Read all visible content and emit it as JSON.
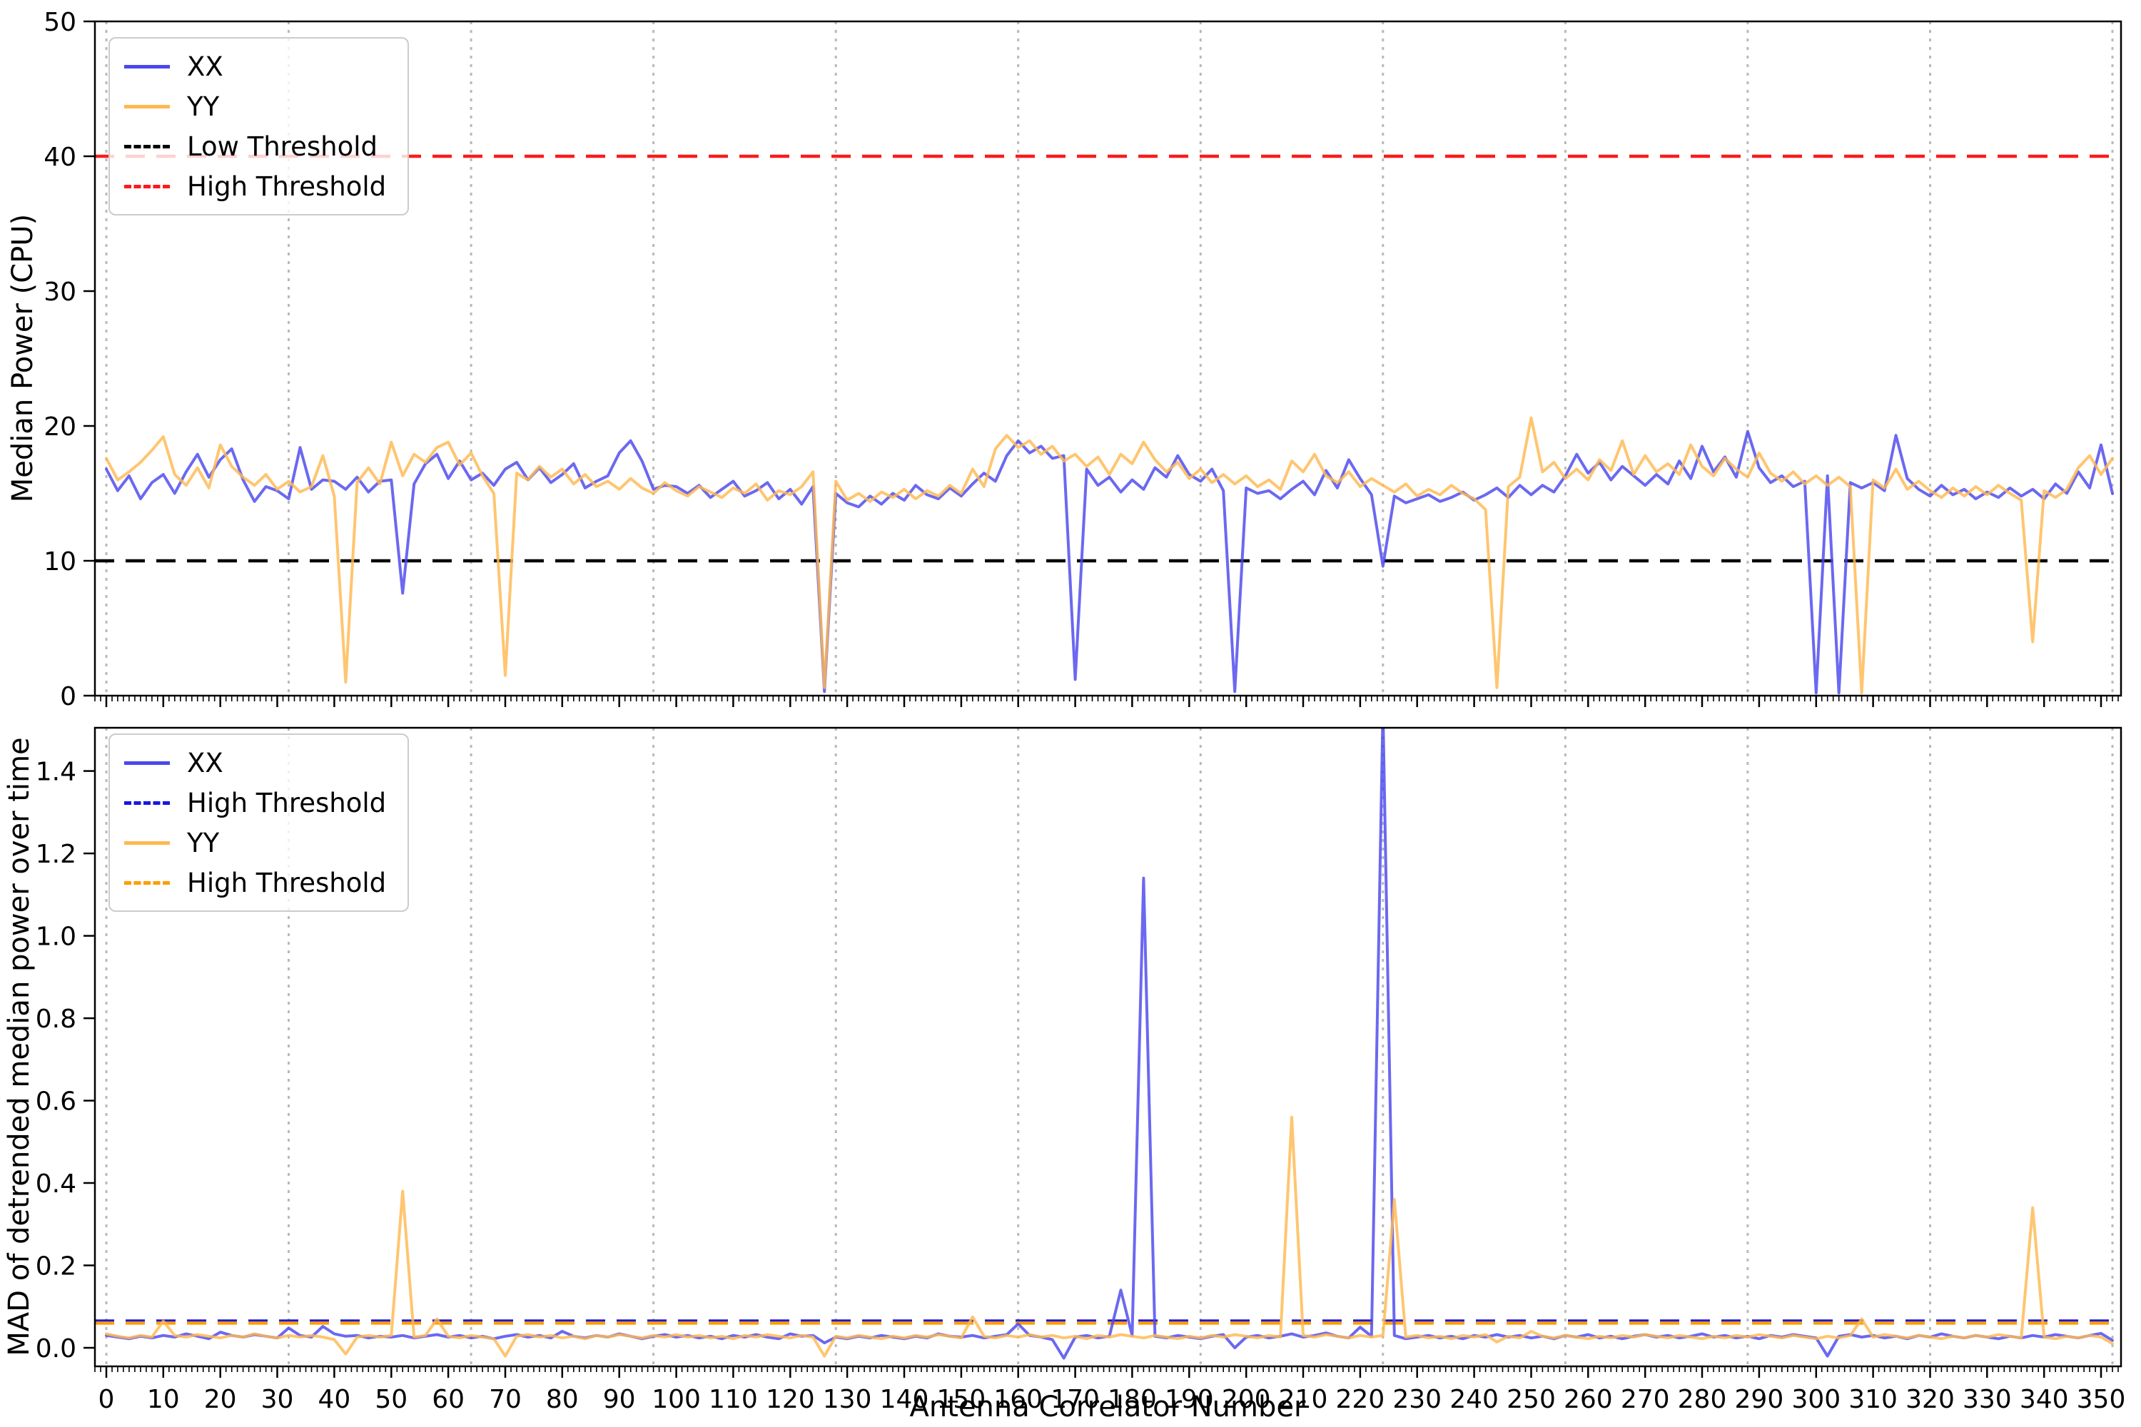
{
  "figure": {
    "background": "#ffffff"
  },
  "colors": {
    "xx_solid": "#4a47ee",
    "yy_solid": "#ffb850",
    "xx_threshold_dash": "#1717e0",
    "yy_threshold_dash": "#ff9e00",
    "low_threshold_black": "#000000",
    "high_threshold_red": "#fb1b1b",
    "gridline": "#b9b9b9"
  },
  "chart_data": [
    {
      "type": "line",
      "panel": "top",
      "title": "",
      "xlabel": "",
      "ylabel": "Median Power (CPU)",
      "xlim": [
        -2.0,
        353.5
      ],
      "ylim": [
        0,
        50
      ],
      "xticks": [
        0,
        10,
        20,
        30,
        40,
        50,
        60,
        70,
        80,
        90,
        100,
        110,
        120,
        130,
        140,
        150,
        160,
        170,
        180,
        190,
        200,
        210,
        220,
        230,
        240,
        250,
        260,
        270,
        280,
        290,
        300,
        310,
        320,
        330,
        340,
        350
      ],
      "x_tick_labels_visible": false,
      "x_minor_step": 1,
      "yticks": [
        0,
        10,
        20,
        30,
        40,
        50
      ],
      "ytick_labels": [
        "0",
        "10",
        "20",
        "30",
        "40",
        "50"
      ],
      "grid_x": [
        0,
        32,
        64,
        96,
        128,
        160,
        192,
        224,
        256,
        288,
        320,
        352
      ],
      "grid_style": "vertical dotted light-gray every 32 antennas",
      "legend_position": "upper left",
      "legend": {
        "items": [
          {
            "label": "XX",
            "sample_style": "border-top:5px solid #4a47ee"
          },
          {
            "label": "YY",
            "sample_style": "border-top:5px solid #ffb850"
          },
          {
            "label": "Low Threshold",
            "sample_style": "border-top:5px dashed #000000"
          },
          {
            "label": "High Threshold",
            "sample_style": "border-top:5px dashed #fb1b1b"
          }
        ]
      },
      "thresholds": [
        {
          "label": "Low Threshold",
          "value": 10,
          "color": "#000000"
        },
        {
          "label": "High Threshold",
          "value": 40,
          "color": "#fb1b1b"
        }
      ],
      "series": [
        {
          "name": "XX",
          "color": "#4a47ee",
          "x_start": 0,
          "x_step": 2,
          "values": [
            16.8,
            15.2,
            16.3,
            14.6,
            15.8,
            16.4,
            15.0,
            16.6,
            17.9,
            16.2,
            17.5,
            18.3,
            16.0,
            14.4,
            15.5,
            15.2,
            14.6,
            18.4,
            15.3,
            16.0,
            15.9,
            15.3,
            16.2,
            15.1,
            15.9,
            16.0,
            7.6,
            15.7,
            17.2,
            17.9,
            16.1,
            17.4,
            16.0,
            16.5,
            15.6,
            16.8,
            17.3,
            16.0,
            16.9,
            15.8,
            16.4,
            17.2,
            15.4,
            15.9,
            16.3,
            18.0,
            18.9,
            17.4,
            15.3,
            15.6,
            15.5,
            15.0,
            15.6,
            14.7,
            15.3,
            15.9,
            14.8,
            15.2,
            15.8,
            14.6,
            15.3,
            14.2,
            15.5,
            0.3,
            15.0,
            14.3,
            14.0,
            14.8,
            14.2,
            15.0,
            14.5,
            15.6,
            14.9,
            14.6,
            15.4,
            14.8,
            15.7,
            16.5,
            15.9,
            17.8,
            18.9,
            18.0,
            18.5,
            17.6,
            17.8,
            1.2,
            16.8,
            15.6,
            16.2,
            15.1,
            16.0,
            15.3,
            16.9,
            16.2,
            17.8,
            16.4,
            15.9,
            16.8,
            15.2,
            0.3,
            15.4,
            15.0,
            15.2,
            14.6,
            15.3,
            15.9,
            14.9,
            16.7,
            15.4,
            17.5,
            16.1,
            14.9,
            9.6,
            14.8,
            14.3,
            14.6,
            14.9,
            14.4,
            14.7,
            15.1,
            14.5,
            14.9,
            15.4,
            14.7,
            15.6,
            14.9,
            15.6,
            15.1,
            16.3,
            17.9,
            16.5,
            17.3,
            16.0,
            17.0,
            16.3,
            15.6,
            16.4,
            15.7,
            17.4,
            16.1,
            18.5,
            16.6,
            17.7,
            16.2,
            19.6,
            16.9,
            15.8,
            16.3,
            15.5,
            15.9,
            0.2,
            16.3,
            0.2,
            15.8,
            15.4,
            15.8,
            15.2,
            19.3,
            16.1,
            15.3,
            14.8,
            15.6,
            14.9,
            15.3,
            14.6,
            15.1,
            14.7,
            15.4,
            14.8,
            15.3,
            14.6,
            15.7,
            15.0,
            16.6,
            15.4,
            18.6,
            15.0
          ]
        },
        {
          "name": "YY",
          "color": "#ffb850",
          "x_start": 0,
          "x_step": 2,
          "values": [
            17.6,
            16.0,
            16.6,
            17.3,
            18.2,
            19.2,
            16.4,
            15.6,
            16.9,
            15.4,
            18.6,
            17.0,
            16.2,
            15.6,
            16.4,
            15.3,
            15.9,
            15.1,
            15.5,
            17.8,
            14.8,
            1.0,
            15.8,
            16.9,
            15.7,
            18.8,
            16.3,
            17.9,
            17.3,
            18.4,
            18.8,
            17.1,
            18.0,
            16.3,
            15.0,
            1.5,
            16.5,
            16.0,
            17.0,
            16.2,
            16.8,
            15.7,
            16.4,
            15.5,
            15.9,
            15.3,
            16.1,
            15.4,
            15.0,
            15.8,
            15.2,
            14.8,
            15.5,
            15.1,
            14.7,
            15.4,
            15.0,
            15.7,
            14.5,
            15.2,
            14.9,
            15.5,
            16.6,
            0.6,
            15.9,
            14.5,
            15.0,
            14.4,
            15.1,
            14.7,
            15.3,
            14.6,
            15.2,
            14.8,
            15.6,
            15.0,
            16.8,
            15.5,
            18.3,
            19.3,
            18.4,
            18.9,
            17.9,
            18.5,
            17.4,
            17.9,
            17.0,
            17.7,
            16.4,
            17.9,
            17.2,
            18.8,
            17.5,
            16.6,
            17.3,
            16.1,
            16.8,
            15.8,
            16.4,
            15.7,
            16.3,
            15.5,
            16.0,
            15.3,
            17.4,
            16.6,
            17.9,
            16.3,
            15.8,
            16.6,
            15.5,
            16.1,
            15.6,
            15.1,
            15.7,
            14.8,
            15.3,
            14.9,
            15.6,
            15.0,
            14.6,
            13.8,
            0.6,
            15.5,
            16.2,
            20.6,
            16.6,
            17.3,
            16.1,
            16.8,
            16.0,
            17.5,
            16.7,
            18.9,
            16.4,
            17.8,
            16.6,
            17.2,
            16.4,
            18.6,
            17.0,
            16.3,
            17.6,
            16.8,
            16.2,
            18.0,
            16.5,
            15.9,
            16.6,
            15.7,
            16.3,
            15.6,
            16.2,
            15.5,
            0.2,
            16.0,
            15.4,
            16.8,
            15.3,
            15.9,
            15.2,
            14.7,
            15.4,
            14.8,
            15.5,
            14.9,
            15.6,
            15.0,
            14.5,
            4.0,
            15.2,
            14.7,
            15.3,
            16.9,
            17.8,
            16.4,
            17.6
          ]
        }
      ]
    },
    {
      "type": "line",
      "panel": "bottom",
      "title": "",
      "xlabel": "Antenna Correlator Number",
      "ylabel": "MAD of detrended median power over time",
      "xlim": [
        -2.0,
        353.5
      ],
      "ylim": [
        -0.045,
        1.505
      ],
      "xticks": [
        0,
        10,
        20,
        30,
        40,
        50,
        60,
        70,
        80,
        90,
        100,
        110,
        120,
        130,
        140,
        150,
        160,
        170,
        180,
        190,
        200,
        210,
        220,
        230,
        240,
        250,
        260,
        270,
        280,
        290,
        300,
        310,
        320,
        330,
        340,
        350
      ],
      "x_tick_labels_visible": true,
      "x_minor_step": 1,
      "yticks": [
        0.0,
        0.2,
        0.4,
        0.6,
        0.8,
        1.0,
        1.2,
        1.4
      ],
      "ytick_labels": [
        "0.0",
        "0.2",
        "0.4",
        "0.6",
        "0.8",
        "1.0",
        "1.2",
        "1.4"
      ],
      "grid_x": [
        0,
        32,
        64,
        96,
        128,
        160,
        192,
        224,
        256,
        288,
        320,
        352
      ],
      "grid_style": "vertical dotted light-gray every 32 antennas",
      "legend_position": "upper left",
      "legend": {
        "items": [
          {
            "label": "XX",
            "sample_style": "border-top:5px solid #4a47ee"
          },
          {
            "label": "High Threshold",
            "sample_style": "border-top:5px dashed #1717e0"
          },
          {
            "label": "YY",
            "sample_style": "border-top:5px solid #ffb850"
          },
          {
            "label": "High Threshold",
            "sample_style": "border-top:5px dashed #ff9e00"
          }
        ]
      },
      "thresholds": [
        {
          "label": "High Threshold",
          "value": 0.065,
          "color": "#1717e0"
        },
        {
          "label": "High Threshold",
          "value": 0.06,
          "color": "#ff9e00"
        }
      ],
      "series": [
        {
          "name": "XX",
          "color": "#4a47ee",
          "x_start": 0,
          "x_step": 2,
          "values": [
            0.03,
            0.026,
            0.022,
            0.028,
            0.024,
            0.03,
            0.026,
            0.034,
            0.028,
            0.022,
            0.038,
            0.03,
            0.026,
            0.032,
            0.028,
            0.024,
            0.048,
            0.03,
            0.026,
            0.052,
            0.034,
            0.028,
            0.03,
            0.024,
            0.028,
            0.026,
            0.03,
            0.024,
            0.028,
            0.032,
            0.026,
            0.03,
            0.024,
            0.028,
            0.022,
            0.028,
            0.032,
            0.026,
            0.03,
            0.024,
            0.04,
            0.028,
            0.024,
            0.03,
            0.026,
            0.034,
            0.028,
            0.022,
            0.028,
            0.032,
            0.026,
            0.03,
            0.024,
            0.028,
            0.022,
            0.03,
            0.026,
            0.032,
            0.026,
            0.022,
            0.034,
            0.028,
            0.03,
            0.012,
            0.026,
            0.022,
            0.028,
            0.024,
            0.03,
            0.026,
            0.022,
            0.028,
            0.024,
            0.034,
            0.028,
            0.026,
            0.03,
            0.024,
            0.028,
            0.032,
            0.058,
            0.03,
            0.026,
            0.02,
            -0.025,
            0.026,
            0.03,
            0.024,
            0.028,
            0.14,
            0.03,
            1.14,
            0.028,
            0.024,
            0.03,
            0.026,
            0.022,
            0.028,
            0.032,
            0.0,
            0.026,
            0.03,
            0.024,
            0.028,
            0.034,
            0.026,
            0.03,
            0.036,
            0.028,
            0.024,
            0.05,
            0.028,
            1.55,
            0.03,
            0.022,
            0.026,
            0.03,
            0.024,
            0.028,
            0.022,
            0.03,
            0.026,
            0.032,
            0.026,
            0.03,
            0.024,
            0.028,
            0.022,
            0.03,
            0.026,
            0.032,
            0.024,
            0.028,
            0.022,
            0.028,
            0.032,
            0.026,
            0.03,
            0.024,
            0.028,
            0.034,
            0.026,
            0.03,
            0.024,
            0.028,
            0.022,
            0.03,
            0.026,
            0.032,
            0.028,
            0.024,
            -0.02,
            0.028,
            0.032,
            0.026,
            0.03,
            0.024,
            0.028,
            0.022,
            0.03,
            0.026,
            0.034,
            0.028,
            0.024,
            0.03,
            0.026,
            0.022,
            0.028,
            0.024,
            0.03,
            0.026,
            0.032,
            0.028,
            0.024,
            0.03,
            0.035,
            0.018
          ]
        },
        {
          "name": "YY",
          "color": "#ffb850",
          "x_start": 0,
          "x_step": 2,
          "values": [
            0.034,
            0.028,
            0.024,
            0.03,
            0.026,
            0.065,
            0.03,
            0.026,
            0.032,
            0.028,
            0.024,
            0.03,
            0.026,
            0.034,
            0.028,
            0.024,
            0.03,
            0.026,
            0.03,
            0.026,
            0.02,
            -0.015,
            0.026,
            0.03,
            0.026,
            0.03,
            0.38,
            0.026,
            0.03,
            0.07,
            0.028,
            0.024,
            0.03,
            0.026,
            0.022,
            -0.02,
            0.028,
            0.032,
            0.026,
            0.03,
            0.024,
            0.028,
            0.022,
            0.03,
            0.026,
            0.032,
            0.028,
            0.024,
            0.03,
            0.026,
            0.032,
            0.026,
            0.03,
            0.024,
            0.028,
            0.022,
            0.03,
            0.026,
            0.032,
            0.028,
            0.024,
            0.03,
            0.026,
            -0.02,
            0.028,
            0.024,
            0.03,
            0.026,
            0.022,
            0.028,
            0.024,
            0.03,
            0.026,
            0.032,
            0.028,
            0.024,
            0.075,
            0.028,
            0.024,
            0.03,
            0.026,
            0.032,
            0.026,
            0.03,
            0.024,
            0.028,
            0.022,
            0.03,
            0.026,
            0.032,
            0.028,
            0.024,
            0.03,
            0.026,
            0.022,
            0.028,
            0.024,
            0.03,
            0.026,
            0.032,
            0.028,
            0.024,
            0.03,
            0.026,
            0.56,
            0.03,
            0.026,
            0.032,
            0.028,
            0.024,
            0.03,
            0.026,
            0.03,
            0.36,
            0.026,
            0.03,
            0.024,
            0.028,
            0.022,
            0.03,
            0.026,
            0.032,
            0.014,
            0.028,
            0.024,
            0.04,
            0.028,
            0.024,
            0.03,
            0.026,
            0.022,
            0.028,
            0.024,
            0.03,
            0.026,
            0.032,
            0.028,
            0.024,
            0.03,
            0.026,
            0.022,
            0.028,
            0.024,
            0.03,
            0.026,
            0.032,
            0.028,
            0.024,
            0.03,
            0.026,
            0.022,
            0.028,
            0.024,
            0.03,
            0.07,
            0.026,
            0.032,
            0.028,
            0.024,
            0.03,
            0.026,
            0.022,
            0.028,
            0.024,
            0.03,
            0.026,
            0.032,
            0.028,
            0.024,
            0.34,
            0.026,
            0.022,
            0.028,
            0.024,
            0.03,
            0.026,
            0.01
          ]
        }
      ]
    }
  ]
}
